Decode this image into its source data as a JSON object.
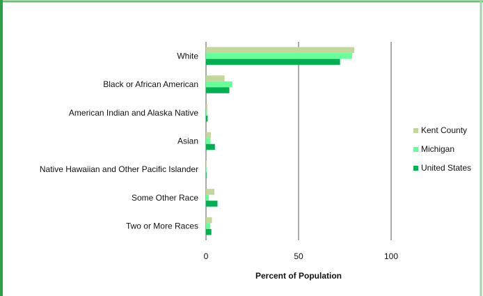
{
  "colors": {
    "frame_top": "#6fbf73",
    "frame_left": "#2e9e49",
    "frame_right": "#9fd6a6",
    "gridline": "#555555"
  },
  "chart_data": {
    "type": "bar",
    "orientation": "horizontal",
    "title": "",
    "xlabel": "Percent of Population",
    "ylabel": "",
    "xlim": [
      0,
      100
    ],
    "xticks": [
      0,
      50,
      100
    ],
    "grid": true,
    "legend_position": "right",
    "categories": [
      "White",
      "Black or African American",
      "American Indian and Alaska Native",
      "Asian",
      "Native Hawaiian and Other Pacific Islander",
      "Some Other Race",
      "Two or More Races"
    ],
    "series": [
      {
        "name": "Kent County",
        "color": "#c3d69b",
        "values": [
          80.1,
          10.0,
          0.7,
          2.6,
          0.1,
          4.5,
          3.2
        ]
      },
      {
        "name": "Michigan",
        "color": "#66ff99",
        "values": [
          78.9,
          14.2,
          0.6,
          2.4,
          0.1,
          1.5,
          2.3
        ]
      },
      {
        "name": "United States",
        "color": "#00b050",
        "values": [
          72.4,
          12.6,
          0.9,
          4.8,
          0.2,
          6.2,
          2.9
        ]
      }
    ]
  }
}
